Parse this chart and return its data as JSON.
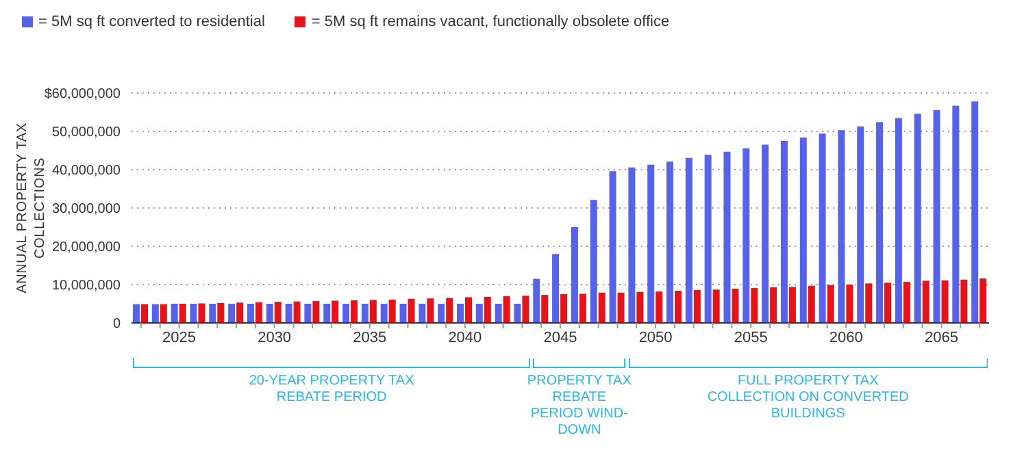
{
  "chart_data": {
    "type": "bar",
    "ylabel": "ANNUAL PROPERTY TAX COLLECTIONS",
    "categories": [
      null,
      null,
      "2025",
      null,
      null,
      null,
      null,
      "2030",
      null,
      null,
      null,
      null,
      "2035",
      null,
      null,
      null,
      null,
      "2040",
      null,
      null,
      null,
      null,
      "2045",
      null,
      null,
      null,
      null,
      "2050",
      null,
      null,
      null,
      null,
      "2055",
      null,
      null,
      null,
      null,
      "2060",
      null,
      null,
      null,
      null,
      "2065",
      null,
      null
    ],
    "series": [
      {
        "name": "= 5M sq ft converted to residential",
        "color": "#5662e8",
        "values": [
          4900000,
          4900000,
          5000000,
          5000000,
          5000000,
          5000000,
          5000000,
          5000000,
          5000000,
          5000000,
          5000000,
          5000000,
          5000000,
          5000000,
          5000000,
          5000000,
          5000000,
          5000000,
          5000000,
          5000000,
          5000000,
          11500000,
          18000000,
          25000000,
          32100000,
          39600000,
          40600000,
          41300000,
          42100000,
          43100000,
          43900000,
          44700000,
          45600000,
          46500000,
          47500000,
          48400000,
          49400000,
          50300000,
          51300000,
          52400000,
          53500000,
          54600000,
          55600000,
          56700000,
          57800000
        ]
      },
      {
        "name": "= 5M sq ft remains vacant, functionally obsolete office",
        "color": "#e5141b",
        "values": [
          4900000,
          4900000,
          5000000,
          5100000,
          5200000,
          5300000,
          5400000,
          5500000,
          5600000,
          5700000,
          5800000,
          5900000,
          6000000,
          6100000,
          6300000,
          6400000,
          6500000,
          6700000,
          6800000,
          7000000,
          7100000,
          7300000,
          7500000,
          7600000,
          7900000,
          7900000,
          8100000,
          8200000,
          8400000,
          8600000,
          8700000,
          8900000,
          9100000,
          9300000,
          9400000,
          9700000,
          9900000,
          10000000,
          10300000,
          10500000,
          10700000,
          11000000,
          11100000,
          11300000,
          11600000
        ]
      }
    ],
    "ylim": [
      0,
      60000000
    ],
    "yticks": [
      0,
      {
        "value": 10000000,
        "label": "10,000,000"
      },
      {
        "value": 20000000,
        "label": "20,000,000"
      },
      {
        "value": 30000000,
        "label": "30,000,000"
      },
      {
        "value": 40000000,
        "label": "40,000,000"
      },
      {
        "value": 50000000,
        "label": "50,000,000"
      },
      {
        "value": 60000000,
        "label": "$60,000,000"
      }
    ],
    "grid": "y",
    "legend": "top left",
    "annotations": [
      "20-YEAR PROPERTY TAX REBATE PERIOD",
      "PROPERTY TAX REBATE PERIOD WIND-DOWN",
      "FULL PROPERTY TAX COLLECTION ON CONVERTED BUILDINGS"
    ]
  }
}
